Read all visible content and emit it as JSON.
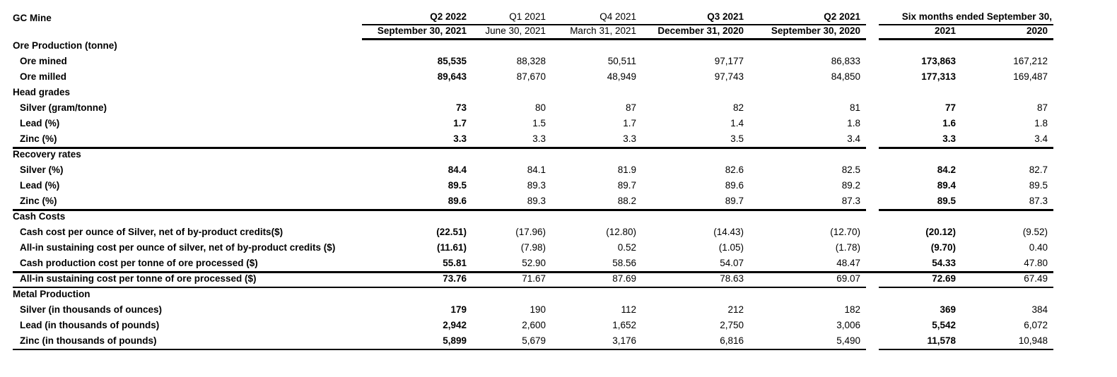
{
  "page": {
    "title": "GC Mine"
  },
  "header": {
    "quarters": [
      "Q2 2022",
      "Q1 2021",
      "Q4 2021",
      "Q3 2021",
      "Q2 2021"
    ],
    "dates": [
      "September 30, 2021",
      "June 30, 2021",
      "March 31, 2021",
      "December 31, 2020",
      "September 30, 2020"
    ],
    "six_months": {
      "label": "Six months ended September 30,",
      "years": [
        "2021",
        "2020"
      ]
    }
  },
  "rows": [
    {
      "type": "section",
      "label": "Ore Production (tonne)",
      "values": [
        "",
        "",
        "",
        "",
        "",
        "",
        ""
      ]
    },
    {
      "type": "data",
      "label": "Ore mined",
      "values": [
        "85,535",
        "88,328",
        "50,511",
        "97,177",
        "86,833",
        "173,863",
        "167,212"
      ]
    },
    {
      "type": "data",
      "label": "Ore milled",
      "values": [
        "89,643",
        "87,670",
        "48,949",
        "97,743",
        "84,850",
        "177,313",
        "169,487"
      ]
    },
    {
      "type": "section",
      "label": "Head grades",
      "values": [
        "",
        "",
        "",
        "",
        "",
        "",
        ""
      ]
    },
    {
      "type": "data",
      "label": "Silver (gram/tonne)",
      "values": [
        "73",
        "80",
        "87",
        "82",
        "81",
        "77",
        "87"
      ]
    },
    {
      "type": "data",
      "label": "Lead (%)",
      "values": [
        "1.7",
        "1.5",
        "1.7",
        "1.4",
        "1.8",
        "1.6",
        "1.8"
      ]
    },
    {
      "type": "data",
      "label": "Zinc (%)",
      "values": [
        "3.3",
        "3.3",
        "3.3",
        "3.5",
        "3.4",
        "3.3",
        "3.4"
      ],
      "rule": "heavy"
    },
    {
      "type": "section",
      "label": "Recovery rates",
      "values": [
        "",
        "",
        "",
        "",
        "",
        "",
        ""
      ]
    },
    {
      "type": "data",
      "label": "Silver (%)",
      "values": [
        "84.4",
        "84.1",
        "81.9",
        "82.6",
        "82.5",
        "84.2",
        "82.7"
      ]
    },
    {
      "type": "data",
      "label": "Lead (%)",
      "values": [
        "89.5",
        "89.3",
        "89.7",
        "89.6",
        "89.2",
        "89.4",
        "89.5"
      ]
    },
    {
      "type": "data",
      "label": "Zinc (%)",
      "values": [
        "89.6",
        "89.3",
        "88.2",
        "89.7",
        "87.3",
        "89.5",
        "87.3"
      ],
      "rule": "heavy"
    },
    {
      "type": "section",
      "label": "Cash Costs",
      "values": [
        "",
        "",
        "",
        "",
        "",
        "",
        ""
      ]
    },
    {
      "type": "data",
      "label": "Cash cost per ounce of Silver, net of by-product credits($)",
      "values": [
        "(22.51)",
        "(17.96)",
        "(12.80)",
        "(14.43)",
        "(12.70)",
        "(20.12)",
        "(9.52)"
      ]
    },
    {
      "type": "data",
      "label": "All-in sustaining cost per ounce of silver, net of by-product credits ($)",
      "values": [
        "(11.61)",
        "(7.98)",
        "0.52",
        "(1.05)",
        "(1.78)",
        "(9.70)",
        "0.40"
      ]
    },
    {
      "type": "data",
      "label": "Cash production cost per tonne of ore processed ($)",
      "values": [
        "55.81",
        "52.90",
        "58.56",
        "54.07",
        "48.47",
        "54.33",
        "47.80"
      ],
      "rule": "heavy-full"
    },
    {
      "type": "data",
      "label": "All-in sustaining cost per tonne of ore processed ($)",
      "values": [
        "73.76",
        "71.67",
        "87.69",
        "78.63",
        "69.07",
        "72.69",
        "67.49"
      ],
      "rule": "light"
    },
    {
      "type": "section",
      "label": "Metal Production",
      "values": [
        "",
        "",
        "",
        "",
        "",
        "",
        ""
      ]
    },
    {
      "type": "data",
      "label": "Silver (in thousands of ounces)",
      "values": [
        "179",
        "190",
        "112",
        "212",
        "182",
        "369",
        "384"
      ]
    },
    {
      "type": "data",
      "label": "Lead (in thousands of pounds)",
      "values": [
        "2,942",
        "2,600",
        "1,652",
        "2,750",
        "3,006",
        "5,542",
        "6,072"
      ]
    },
    {
      "type": "data",
      "label": "Zinc (in thousands of pounds)",
      "values": [
        "5,899",
        "5,679",
        "3,176",
        "6,816",
        "5,490",
        "11,578",
        "10,948"
      ],
      "rule": "light"
    }
  ]
}
